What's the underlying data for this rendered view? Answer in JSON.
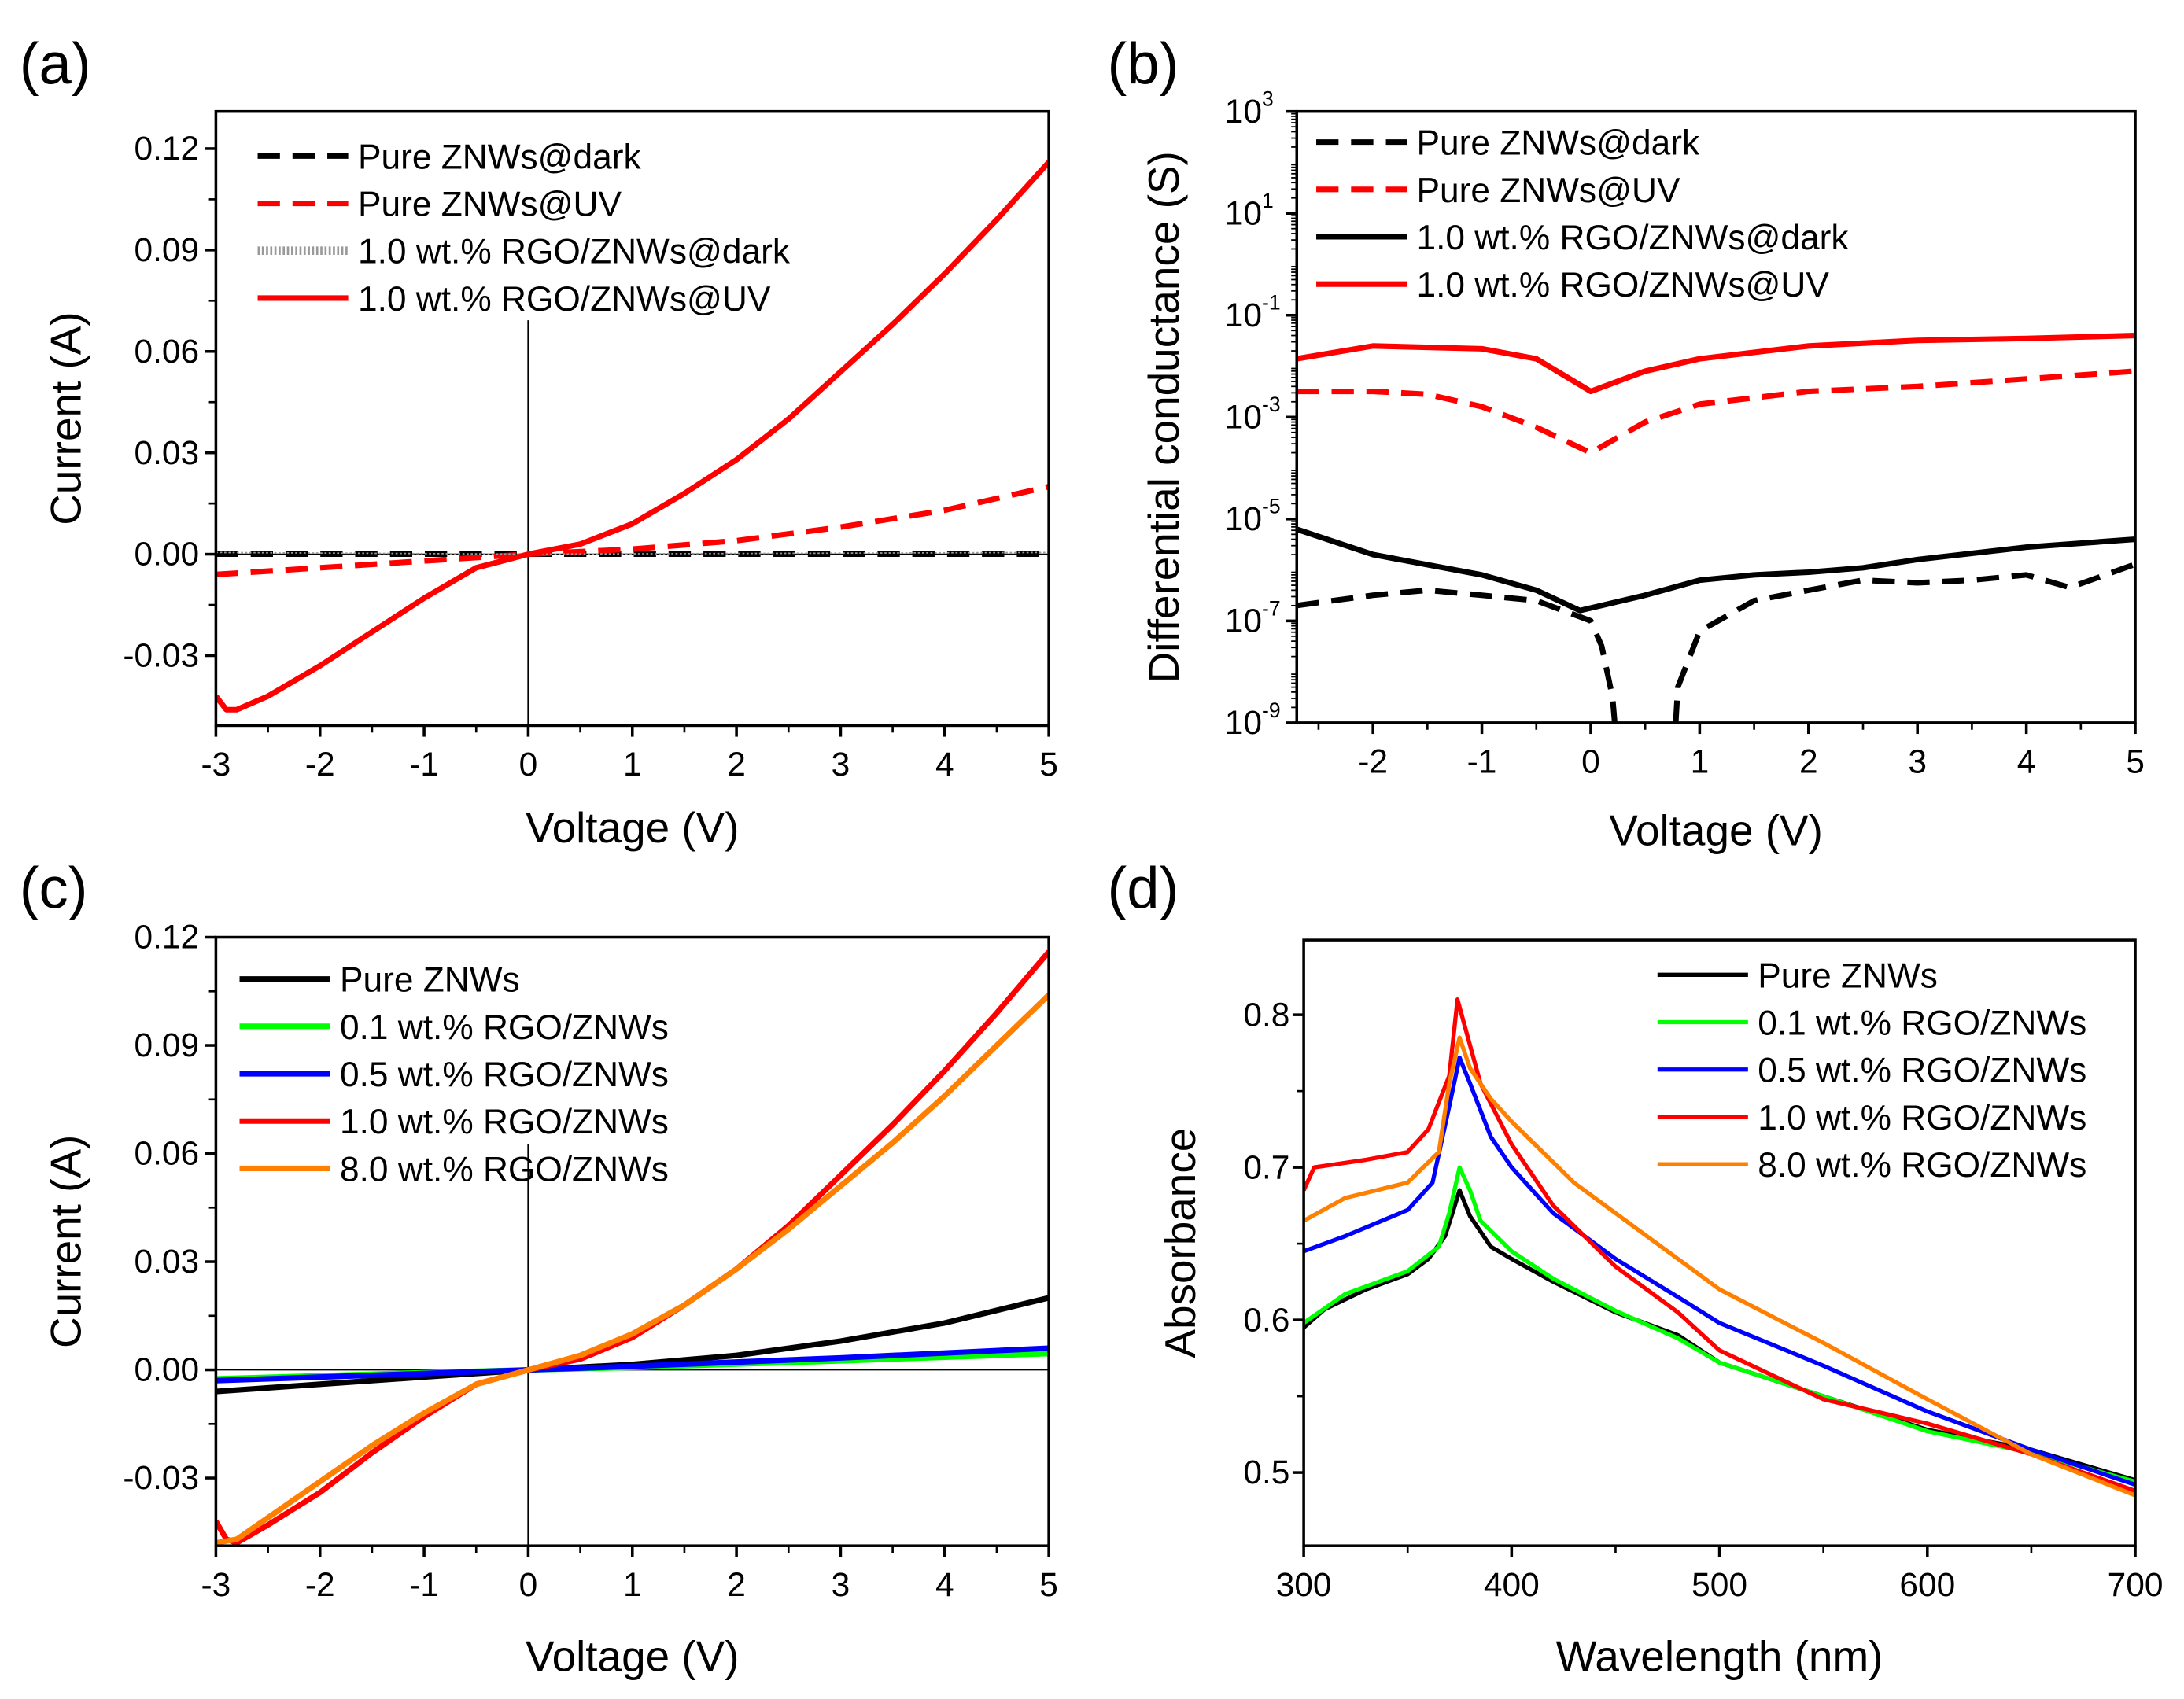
{
  "chart_data": [
    {
      "panel_label": "(a)",
      "type": "line",
      "xlabel": "Voltage (V)",
      "ylabel": "Current (A)",
      "xlim": [
        -3,
        5
      ],
      "ylim": [
        -0.0507,
        0.131
      ],
      "xticks": [
        -3,
        -2,
        -1,
        0,
        1,
        2,
        3,
        4,
        5
      ],
      "yticks": [
        -0.03,
        0.0,
        0.03,
        0.06,
        0.09,
        0.12
      ],
      "ytick_labels": [
        "-0.03",
        "0.00",
        "0.03",
        "0.06",
        "0.09",
        "0.12"
      ],
      "zero_lines": true,
      "legend_position": "top-left",
      "series": [
        {
          "name": "Pure ZNWs@dark",
          "color": "#000000",
          "style": "dash",
          "x": [
            -3,
            0,
            5
          ],
          "y": [
            0.0,
            0.0,
            0.0
          ]
        },
        {
          "name": "Pure ZNWs@UV",
          "color": "#ff0000",
          "style": "dash",
          "x": [
            -3,
            -2,
            -1,
            0,
            1,
            2,
            3,
            4,
            5
          ],
          "y": [
            -0.006,
            -0.004,
            -0.002,
            0,
            0.0015,
            0.004,
            0.008,
            0.013,
            0.02
          ]
        },
        {
          "name": "1.0 wt.% RGO/ZNWs@dark",
          "color": "#999999",
          "style": "dotted",
          "x": [
            -3,
            0,
            5
          ],
          "y": [
            0.0005,
            0.0,
            0.0005
          ]
        },
        {
          "name": "1.0 wt.% RGO/ZNWs@UV",
          "color": "#ff0000",
          "style": "solid",
          "x": [
            -3,
            -2.9,
            -2.8,
            -2.5,
            -2,
            -1.5,
            -1,
            -0.5,
            0,
            0.5,
            1,
            1.5,
            2,
            2.5,
            3,
            3.5,
            4,
            4.5,
            5
          ],
          "y": [
            -0.042,
            -0.046,
            -0.046,
            -0.042,
            -0.033,
            -0.023,
            -0.013,
            -0.004,
            0,
            0.003,
            0.009,
            0.018,
            0.028,
            0.04,
            0.054,
            0.068,
            0.083,
            0.099,
            0.116
          ]
        }
      ]
    },
    {
      "panel_label": "(b)",
      "type": "line",
      "xlabel": "Voltage (V)",
      "ylabel": "Differential conductance (S)",
      "xlim": [
        -2.7,
        5
      ],
      "ylim": [
        1e-09,
        1000.0
      ],
      "yscale": "log",
      "xticks": [
        -2,
        -1,
        0,
        1,
        2,
        3,
        4,
        5
      ],
      "yticks_exponents": [
        -9,
        -7,
        -5,
        -3,
        -1,
        1,
        3
      ],
      "ytick_base": "10",
      "legend_position": "top-left",
      "series": [
        {
          "name": "Pure ZNWs@dark",
          "color": "#000000",
          "style": "dash",
          "x": [
            -2.7,
            -2,
            -1.5,
            -1,
            -0.5,
            0,
            0.1,
            0.2,
            0.22,
            null,
            0.78,
            0.8,
            1,
            1.5,
            2,
            2.5,
            3,
            3.5,
            4,
            4.4,
            5
          ],
          "y": [
            2e-07,
            3.2e-07,
            4e-07,
            3.2e-07,
            2.5e-07,
            1e-07,
            3.2e-08,
            3.2e-09,
            1e-09,
            null,
            1e-09,
            5e-09,
            6.3e-08,
            2.5e-07,
            4e-07,
            6.3e-07,
            5.6e-07,
            6.3e-07,
            8e-07,
            4.5e-07,
            1.3e-06
          ]
        },
        {
          "name": "Pure ZNWs@UV",
          "color": "#ff0000",
          "style": "dash",
          "x": [
            -2.7,
            -2,
            -1.5,
            -1,
            -0.5,
            0,
            0.5,
            1,
            2,
            3,
            4,
            5
          ],
          "y": [
            0.0032,
            0.0032,
            0.0028,
            0.0016,
            0.00063,
            0.0002,
            0.0008,
            0.0018,
            0.0032,
            0.004,
            0.0056,
            0.008
          ]
        },
        {
          "name": "1.0 wt.% RGO/ZNWs@dark",
          "color": "#000000",
          "style": "solid",
          "x": [
            -2.7,
            -2,
            -1,
            -0.5,
            -0.1,
            0.5,
            1,
            1.5,
            2,
            2.5,
            3,
            4,
            5
          ],
          "y": [
            6.3e-06,
            2e-06,
            8e-07,
            4e-07,
            1.6e-07,
            3.2e-07,
            6.3e-07,
            8e-07,
            9e-07,
            1.1e-06,
            1.6e-06,
            2.8e-06,
            4e-06
          ]
        },
        {
          "name": "1.0 wt.% RGO/ZNWs@UV",
          "color": "#ff0000",
          "style": "solid",
          "x": [
            -2.7,
            -2,
            -1,
            -0.5,
            0,
            0.5,
            1,
            2,
            3,
            4,
            5
          ],
          "y": [
            0.014,
            0.025,
            0.022,
            0.014,
            0.0032,
            0.008,
            0.014,
            0.025,
            0.032,
            0.035,
            0.04
          ]
        }
      ]
    },
    {
      "panel_label": "(c)",
      "type": "line",
      "xlabel": "Voltage (V)",
      "ylabel": "Current (A)",
      "xlim": [
        -3,
        5
      ],
      "ylim": [
        -0.0488,
        0.12
      ],
      "xticks": [
        -3,
        -2,
        -1,
        0,
        1,
        2,
        3,
        4,
        5
      ],
      "yticks": [
        -0.03,
        0.0,
        0.03,
        0.06,
        0.09,
        0.12
      ],
      "ytick_labels": [
        "-0.03",
        "0.00",
        "0.03",
        "0.06",
        "0.09",
        "0.12"
      ],
      "zero_lines": true,
      "legend_position": "top-left",
      "series": [
        {
          "name": "Pure ZNWs",
          "color": "#000000",
          "style": "solid",
          "x": [
            -3,
            -2,
            -1,
            0,
            1,
            2,
            3,
            4,
            5
          ],
          "y": [
            -0.006,
            -0.004,
            -0.002,
            0,
            0.0015,
            0.004,
            0.008,
            0.013,
            0.02
          ]
        },
        {
          "name": "0.1 wt.% RGO/ZNWs",
          "color": "#00ff00",
          "style": "solid",
          "x": [
            -3,
            -1,
            0,
            1,
            3,
            5
          ],
          "y": [
            -0.0025,
            -0.0008,
            0,
            0.0007,
            0.0025,
            0.0045
          ]
        },
        {
          "name": "0.5 wt.% RGO/ZNWs",
          "color": "#0000ff",
          "style": "solid",
          "x": [
            -3,
            -1,
            0,
            1,
            3,
            5
          ],
          "y": [
            -0.003,
            -0.001,
            0,
            0.001,
            0.0033,
            0.006
          ]
        },
        {
          "name": "1.0 wt.% RGO/ZNWs",
          "color": "#ff0000",
          "style": "solid",
          "x": [
            -3,
            -2.9,
            -2.8,
            -2.5,
            -2,
            -1.5,
            -1,
            -0.5,
            0,
            0.5,
            1,
            1.5,
            2,
            2.5,
            3,
            3.5,
            4,
            4.5,
            5
          ],
          "y": [
            -0.042,
            -0.047,
            -0.048,
            -0.043,
            -0.034,
            -0.023,
            -0.013,
            -0.004,
            0,
            0.003,
            0.009,
            0.018,
            0.028,
            0.04,
            0.054,
            0.068,
            0.083,
            0.099,
            0.116
          ]
        },
        {
          "name": "8.0 wt.% RGO/ZNWs",
          "color": "#ff8000",
          "style": "solid",
          "x": [
            -3,
            -2.8,
            -2.5,
            -2,
            -1.5,
            -1,
            -0.5,
            0,
            0.5,
            1,
            1.5,
            2,
            2.5,
            3,
            3.5,
            4,
            4.5,
            5
          ],
          "y": [
            -0.048,
            -0.047,
            -0.041,
            -0.031,
            -0.021,
            -0.012,
            -0.004,
            0,
            0.004,
            0.01,
            0.018,
            0.028,
            0.039,
            0.051,
            0.063,
            0.076,
            0.09,
            0.104
          ]
        }
      ]
    },
    {
      "panel_label": "(d)",
      "type": "line",
      "xlabel": "Wavelength (nm)",
      "ylabel": "Absorbance",
      "xlim": [
        300,
        700
      ],
      "ylim": [
        0.452,
        0.849
      ],
      "xticks": [
        300,
        400,
        500,
        600,
        700
      ],
      "yticks": [
        0.5,
        0.6,
        0.7,
        0.8
      ],
      "ytick_labels": [
        "0.5",
        "0.6",
        "0.7",
        "0.8"
      ],
      "legend_position": "top-right",
      "series": [
        {
          "name": "Pure ZNWs",
          "color": "#000000",
          "style": "solid",
          "x": [
            300,
            310,
            330,
            350,
            360,
            368,
            372,
            375,
            380,
            390,
            400,
            420,
            450,
            480,
            500,
            550,
            600,
            650,
            700
          ],
          "y": [
            0.595,
            0.607,
            0.62,
            0.63,
            0.64,
            0.655,
            0.672,
            0.685,
            0.668,
            0.648,
            0.64,
            0.625,
            0.605,
            0.59,
            0.572,
            0.55,
            0.528,
            0.515,
            0.495
          ]
        },
        {
          "name": "0.1 wt.% RGO/ZNWs",
          "color": "#00ff00",
          "style": "solid",
          "x": [
            300,
            320,
            350,
            365,
            370,
            375,
            380,
            385,
            400,
            420,
            450,
            480,
            500,
            550,
            600,
            650,
            700
          ],
          "y": [
            0.598,
            0.617,
            0.632,
            0.648,
            0.67,
            0.7,
            0.685,
            0.665,
            0.645,
            0.627,
            0.606,
            0.588,
            0.572,
            0.55,
            0.527,
            0.513,
            0.494
          ]
        },
        {
          "name": "0.5 wt.% RGO/ZNWs",
          "color": "#0000ff",
          "style": "solid",
          "x": [
            300,
            320,
            350,
            362,
            370,
            375,
            380,
            390,
            400,
            420,
            450,
            480,
            500,
            550,
            600,
            650,
            700
          ],
          "y": [
            0.645,
            0.655,
            0.672,
            0.69,
            0.74,
            0.772,
            0.755,
            0.72,
            0.7,
            0.67,
            0.64,
            0.615,
            0.598,
            0.57,
            0.54,
            0.515,
            0.492
          ]
        },
        {
          "name": "1.0 wt.% RGO/ZNWs",
          "color": "#ff0000",
          "style": "solid",
          "x": [
            300,
            305,
            330,
            350,
            360,
            370,
            374,
            378,
            385,
            400,
            420,
            450,
            480,
            500,
            550,
            600,
            650,
            700
          ],
          "y": [
            0.685,
            0.7,
            0.705,
            0.71,
            0.725,
            0.76,
            0.81,
            0.79,
            0.755,
            0.715,
            0.675,
            0.635,
            0.605,
            0.58,
            0.548,
            0.532,
            0.512,
            0.488
          ]
        },
        {
          "name": "8.0 wt.% RGO/ZNWs",
          "color": "#ff8000",
          "style": "solid",
          "x": [
            300,
            320,
            350,
            365,
            370,
            375,
            380,
            390,
            400,
            430,
            460,
            480,
            500,
            550,
            600,
            650,
            700
          ],
          "y": [
            0.665,
            0.68,
            0.69,
            0.71,
            0.755,
            0.785,
            0.765,
            0.745,
            0.73,
            0.69,
            0.66,
            0.64,
            0.62,
            0.585,
            0.548,
            0.512,
            0.485
          ]
        }
      ]
    }
  ]
}
